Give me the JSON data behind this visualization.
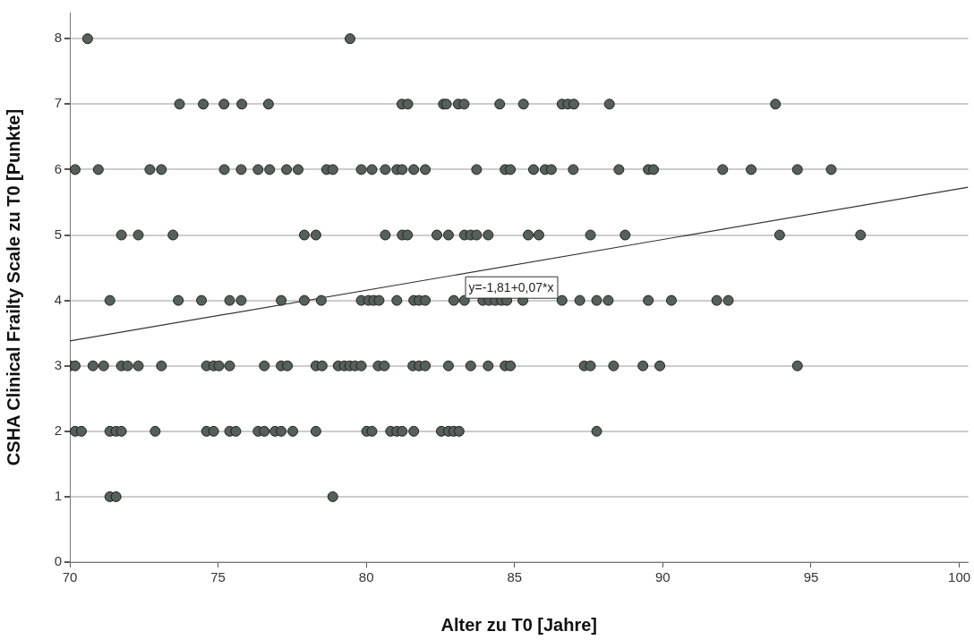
{
  "chart_data": {
    "type": "scatter",
    "xlabel": "Alter zu T0 [Jahre]",
    "ylabel": "CSHA Clinical Frailty Scale zu T0 [Punkte]",
    "xlim": [
      70,
      100.3
    ],
    "xticks": [
      70,
      75,
      80,
      85,
      90,
      95,
      100
    ],
    "ylim": [
      0,
      8.4
    ],
    "yticks": [
      0,
      1,
      2,
      3,
      4,
      5,
      6,
      7,
      8
    ],
    "grid": "y",
    "legend": false,
    "marker": "circle",
    "annotations": [
      "y=-1,81+0,07*x"
    ],
    "series": [
      {
        "color": "#56605a",
        "x": [
          70.6,
          79.45,
          73.7,
          74.5,
          75.2,
          75.8,
          76.7,
          81.2,
          81.4,
          82.6,
          82.7,
          83.1,
          83.3,
          84.5,
          85.3,
          86.6,
          86.8,
          87.0,
          88.2,
          93.8,
          70.18,
          70.96,
          72.7,
          73.09,
          75.21,
          75.78,
          76.35,
          76.74,
          77.31,
          77.7,
          78.66,
          78.87,
          79.83,
          80.19,
          80.64,
          81.03,
          81.21,
          81.6,
          81.99,
          83.72,
          84.68,
          84.86,
          85.64,
          86.03,
          86.24,
          86.98,
          88.52,
          89.51,
          89.69,
          92.02,
          92.98,
          94.54,
          95.68,
          71.74,
          72.31,
          73.48,
          77.91,
          78.3,
          80.64,
          81.21,
          81.39,
          82.38,
          82.77,
          83.31,
          83.52,
          83.72,
          84.11,
          85.46,
          85.82,
          87.56,
          88.73,
          93.94,
          96.67,
          71.35,
          73.66,
          74.44,
          75.39,
          75.78,
          77.13,
          77.91,
          78.48,
          79.83,
          80.07,
          80.25,
          80.43,
          81.03,
          81.6,
          81.78,
          81.99,
          82.95,
          83.31,
          83.93,
          84.14,
          84.35,
          84.56,
          84.74,
          85.28,
          86.6,
          87.2,
          87.77,
          88.16,
          89.51,
          90.29,
          91.82,
          92.21,
          70.0,
          70.18,
          70.78,
          71.14,
          71.74,
          71.95,
          72.31,
          73.09,
          74.61,
          74.85,
          75.03,
          75.39,
          76.56,
          77.13,
          77.34,
          78.3,
          78.51,
          79.05,
          79.26,
          79.44,
          79.62,
          79.83,
          80.4,
          80.61,
          81.57,
          81.78,
          81.99,
          82.77,
          83.52,
          84.11,
          84.68,
          84.86,
          87.35,
          87.56,
          88.34,
          89.33,
          89.9,
          94.54,
          70.18,
          70.39,
          71.35,
          71.56,
          71.74,
          72.88,
          74.61,
          74.85,
          75.39,
          75.6,
          76.35,
          76.56,
          76.92,
          77.13,
          77.52,
          78.3,
          80.01,
          80.19,
          80.82,
          81.03,
          81.21,
          81.6,
          82.53,
          82.77,
          82.95,
          83.13,
          87.77,
          71.35,
          71.56,
          78.87
        ],
        "values": [
          8,
          8,
          7,
          7,
          7,
          7,
          7,
          7,
          7,
          7,
          7,
          7,
          7,
          7,
          7,
          7,
          7,
          7,
          7,
          7,
          6,
          6,
          6,
          6,
          6,
          6,
          6,
          6,
          6,
          6,
          6,
          6,
          6,
          6,
          6,
          6,
          6,
          6,
          6,
          6,
          6,
          6,
          6,
          6,
          6,
          6,
          6,
          6,
          6,
          6,
          6,
          6,
          6,
          5,
          5,
          5,
          5,
          5,
          5,
          5,
          5,
          5,
          5,
          5,
          5,
          5,
          5,
          5,
          5,
          5,
          5,
          5,
          5,
          4,
          4,
          4,
          4,
          4,
          4,
          4,
          4,
          4,
          4,
          4,
          4,
          4,
          4,
          4,
          4,
          4,
          4,
          4,
          4,
          4,
          4,
          4,
          4,
          4,
          4,
          4,
          4,
          4,
          4,
          4,
          4,
          3,
          3,
          3,
          3,
          3,
          3,
          3,
          3,
          3,
          3,
          3,
          3,
          3,
          3,
          3,
          3,
          3,
          3,
          3,
          3,
          3,
          3,
          3,
          3,
          3,
          3,
          3,
          3,
          3,
          3,
          3,
          3,
          3,
          3,
          3,
          3,
          3,
          3,
          2,
          2,
          2,
          2,
          2,
          2,
          2,
          2,
          2,
          2,
          2,
          2,
          2,
          2,
          2,
          2,
          2,
          2,
          2,
          2,
          2,
          2,
          2,
          2,
          2,
          2,
          2,
          1,
          1,
          1
        ]
      },
      {
        "type": "line",
        "color": "#333333",
        "marker": "none",
        "x": [
          70,
          100.3
        ],
        "values": [
          3.38,
          5.73
        ]
      }
    ]
  }
}
